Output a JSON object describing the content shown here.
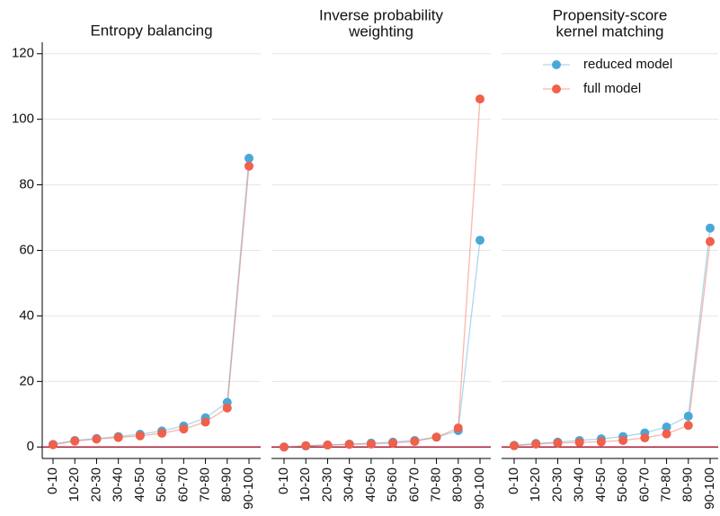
{
  "chart_data": [
    {
      "type": "line",
      "title": [
        "Entropy balancing"
      ],
      "yaxis": true,
      "categories": [
        "0-10",
        "10-20",
        "20-30",
        "30-40",
        "40-50",
        "50-60",
        "60-70",
        "70-80",
        "80-90",
        "90-100"
      ],
      "series": [
        {
          "name": "reduced model",
          "color": "#4aa8d8",
          "values": [
            0.8,
            2.0,
            2.6,
            3.2,
            3.9,
            4.9,
            6.4,
            8.9,
            13.6,
            88.1
          ]
        },
        {
          "name": "full model",
          "color": "#f0604a",
          "values": [
            0.7,
            1.8,
            2.4,
            2.9,
            3.4,
            4.2,
            5.5,
            7.6,
            11.9,
            85.7
          ]
        }
      ],
      "ylim": [
        -3.5,
        123.5
      ],
      "yticks": [
        0,
        20,
        40,
        60,
        80,
        100,
        120
      ],
      "grid": true,
      "reference_line": 0
    },
    {
      "type": "line",
      "title": [
        "Inverse probability",
        "weighting"
      ],
      "yaxis": false,
      "categories": [
        "0-10",
        "10-20",
        "20-30",
        "30-40",
        "40-50",
        "50-60",
        "60-70",
        "70-80",
        "80-90",
        "90-100"
      ],
      "series": [
        {
          "name": "reduced model",
          "color": "#4aa8d8",
          "values": [
            0,
            0.3,
            0.6,
            0.9,
            1.2,
            1.5,
            2.0,
            3.0,
            5.0,
            63.1
          ]
        },
        {
          "name": "full model",
          "color": "#f0604a",
          "values": [
            0,
            0.4,
            0.6,
            0.8,
            0.9,
            1.2,
            1.7,
            3.0,
            5.8,
            106.2
          ]
        }
      ],
      "ylim": [
        -3.5,
        123.5
      ],
      "yticks": [
        0,
        20,
        40,
        60,
        80,
        100,
        120
      ],
      "grid": true,
      "reference_line": 0
    },
    {
      "type": "line",
      "title": [
        "Propensity-score",
        "kernel matching"
      ],
      "yaxis": false,
      "legend": "top-right",
      "categories": [
        "0-10",
        "10-20",
        "20-30",
        "30-40",
        "40-50",
        "50-60",
        "60-70",
        "70-80",
        "80-90",
        "90-100"
      ],
      "series": [
        {
          "name": "reduced model",
          "color": "#4aa8d8",
          "values": [
            0.5,
            1.1,
            1.5,
            2.0,
            2.5,
            3.2,
            4.3,
            6.1,
            9.4,
            66.8
          ]
        },
        {
          "name": "full model",
          "color": "#f0604a",
          "values": [
            0.4,
            0.9,
            1.2,
            1.4,
            1.6,
            2.0,
            2.8,
            4.0,
            6.6,
            62.7
          ]
        }
      ],
      "ylim": [
        -3.5,
        123.5
      ],
      "yticks": [
        0,
        20,
        40,
        60,
        80,
        100,
        120
      ],
      "grid": true,
      "reference_line": 0
    }
  ]
}
